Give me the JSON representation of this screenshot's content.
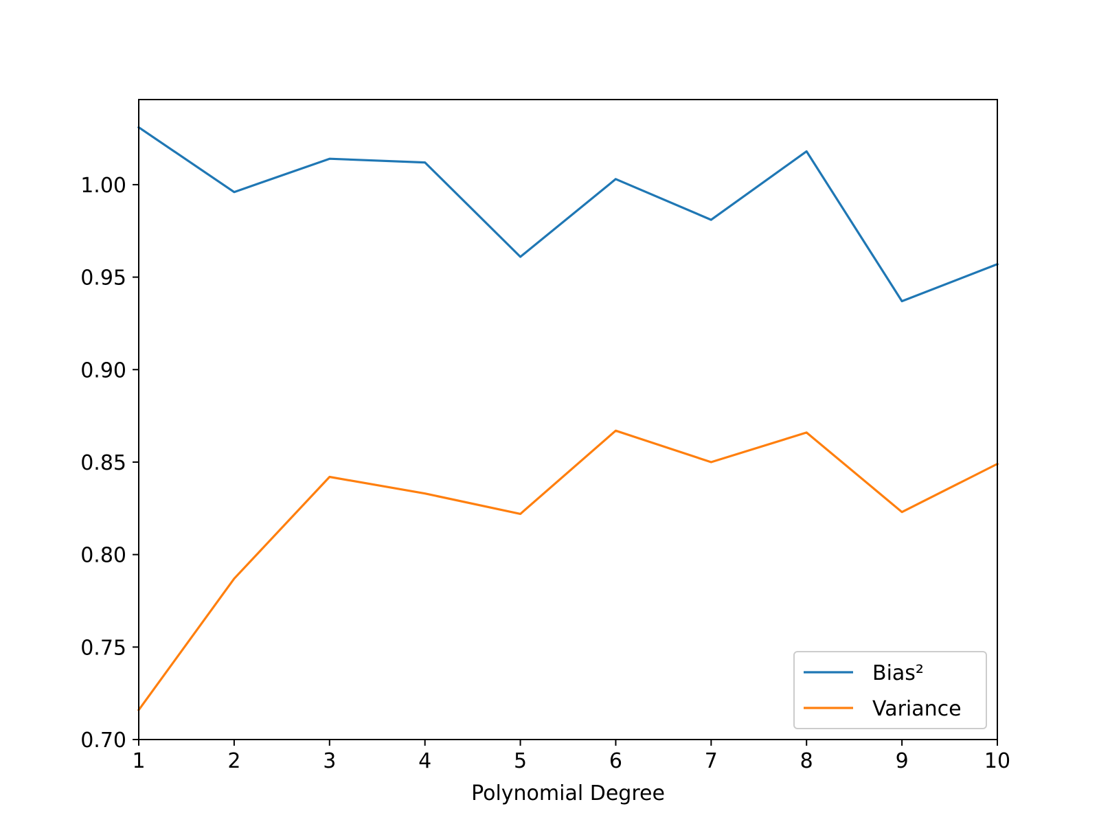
{
  "chart_data": {
    "type": "line",
    "title": "",
    "xlabel": "Polynomial Degree",
    "ylabel": "",
    "x": [
      1,
      2,
      3,
      4,
      5,
      6,
      7,
      8,
      9,
      10
    ],
    "xlim": [
      1,
      10
    ],
    "ylim": [
      0.7,
      1.046
    ],
    "xticks": [
      1,
      2,
      3,
      4,
      5,
      6,
      7,
      8,
      9,
      10
    ],
    "xtick_labels": [
      "1",
      "2",
      "3",
      "4",
      "5",
      "6",
      "7",
      "8",
      "9",
      "10"
    ],
    "yticks": [
      0.7,
      0.75,
      0.8,
      0.85,
      0.9,
      0.95,
      1.0
    ],
    "ytick_labels": [
      "0.70",
      "0.75",
      "0.80",
      "0.85",
      "0.90",
      "0.95",
      "1.00"
    ],
    "grid": false,
    "legend_position": "bottom-right",
    "series": [
      {
        "name": "Bias²",
        "color": "#1f77b4",
        "values": [
          1.031,
          0.996,
          1.014,
          1.012,
          0.961,
          1.003,
          0.981,
          1.018,
          0.937,
          0.957
        ]
      },
      {
        "name": "Variance",
        "color": "#ff7f0e",
        "values": [
          0.716,
          0.787,
          0.842,
          0.833,
          0.822,
          0.867,
          0.85,
          0.866,
          0.823,
          0.849
        ]
      }
    ]
  }
}
